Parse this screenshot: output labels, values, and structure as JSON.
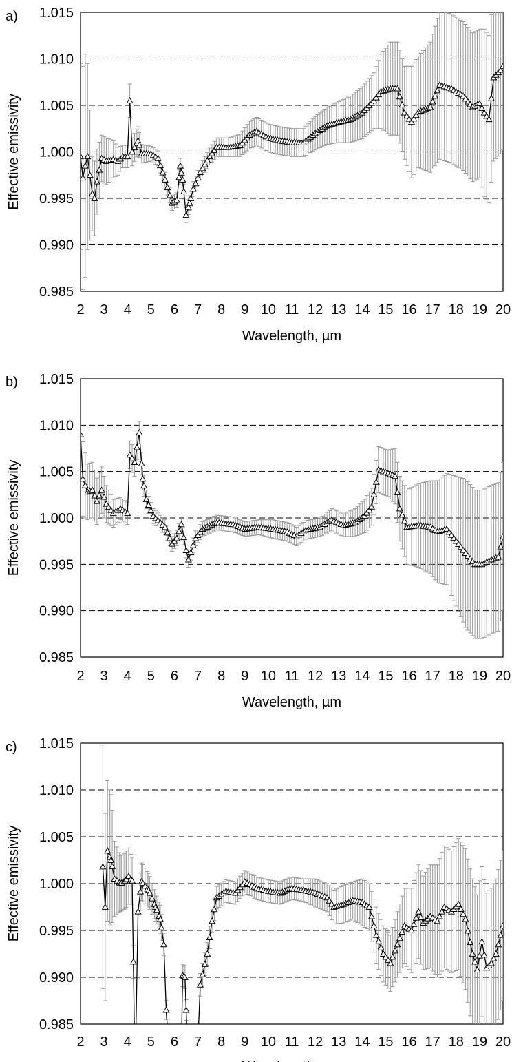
{
  "chart_data": [
    {
      "type": "line",
      "panel_label": "a)",
      "xlabel": "Wavelength, µm",
      "ylabel": "Effective emissivity",
      "xlim": [
        2,
        20
      ],
      "ylim": [
        0.985,
        1.015
      ],
      "xticks": [
        "2",
        "3",
        "4",
        "5",
        "6",
        "7",
        "8",
        "9",
        "10",
        "11",
        "12",
        "13",
        "14",
        "15",
        "16",
        "17",
        "18",
        "19",
        "20"
      ],
      "yticks": [
        "0.985",
        "0.990",
        "0.995",
        "1.000",
        "1.005",
        "1.010",
        "1.015"
      ],
      "grid": "horizontal-dashed",
      "marker": "open-triangle",
      "knots": [
        [
          2.0,
          0.9995,
          0.01
        ],
        [
          2.1,
          0.9972,
          0.012
        ],
        [
          2.2,
          0.9985,
          0.012
        ],
        [
          2.3,
          0.9995,
          0.01
        ],
        [
          2.5,
          0.9955,
          0.004
        ],
        [
          2.6,
          0.995,
          0.004
        ],
        [
          2.7,
          0.9968,
          0.0035
        ],
        [
          2.9,
          0.9993,
          0.0025
        ],
        [
          3.1,
          0.999,
          0.0025
        ],
        [
          3.4,
          0.9992,
          0.002
        ],
        [
          3.6,
          0.999,
          0.0015
        ],
        [
          3.8,
          0.9995,
          0.0012
        ],
        [
          4.0,
          0.9995,
          0.0012
        ],
        [
          4.1,
          1.0055,
          0.0018
        ],
        [
          4.2,
          1.0,
          0.0015
        ],
        [
          4.45,
          1.0012,
          0.0015
        ],
        [
          4.6,
          0.9998,
          0.001
        ],
        [
          5.0,
          0.9998,
          0.0008
        ],
        [
          5.3,
          0.9993,
          0.0008
        ],
        [
          5.6,
          0.997,
          0.0008
        ],
        [
          5.9,
          0.9945,
          0.0008
        ],
        [
          6.1,
          0.9948,
          0.0008
        ],
        [
          6.25,
          0.9985,
          0.0008
        ],
        [
          6.35,
          0.997,
          0.0008
        ],
        [
          6.5,
          0.9932,
          0.0008
        ],
        [
          6.65,
          0.9945,
          0.0008
        ],
        [
          6.8,
          0.996,
          0.0008
        ],
        [
          7.1,
          0.9978,
          0.0008
        ],
        [
          7.5,
          0.9995,
          0.0009
        ],
        [
          7.8,
          1.0005,
          0.001
        ],
        [
          8.3,
          1.0005,
          0.001
        ],
        [
          8.8,
          1.0007,
          0.0012
        ],
        [
          9.2,
          1.0018,
          0.0015
        ],
        [
          9.5,
          1.0022,
          0.0015
        ],
        [
          10.0,
          1.0015,
          0.0015
        ],
        [
          10.5,
          1.0012,
          0.0015
        ],
        [
          11.0,
          1.001,
          0.0015
        ],
        [
          11.5,
          1.001,
          0.0015
        ],
        [
          12.0,
          1.002,
          0.0018
        ],
        [
          12.5,
          1.0028,
          0.002
        ],
        [
          13.0,
          1.0032,
          0.0022
        ],
        [
          13.5,
          1.0035,
          0.0025
        ],
        [
          14.0,
          1.0042,
          0.0028
        ],
        [
          14.5,
          1.0055,
          0.003
        ],
        [
          14.8,
          1.0065,
          0.004
        ],
        [
          15.2,
          1.0068,
          0.005
        ],
        [
          15.5,
          1.0068,
          0.005
        ],
        [
          15.8,
          1.0042,
          0.005
        ],
        [
          16.1,
          1.0032,
          0.006
        ],
        [
          16.4,
          1.0043,
          0.006
        ],
        [
          16.9,
          1.0048,
          0.007
        ],
        [
          17.3,
          1.0072,
          0.008
        ],
        [
          17.8,
          1.0068,
          0.008
        ],
        [
          18.3,
          1.006,
          0.008
        ],
        [
          18.7,
          1.0048,
          0.008
        ],
        [
          19.0,
          1.0052,
          0.008
        ],
        [
          19.2,
          1.0042,
          0.009
        ],
        [
          19.4,
          1.0035,
          0.009
        ],
        [
          19.6,
          1.008,
          0.009
        ],
        [
          19.9,
          1.0088,
          0.009
        ],
        [
          20.0,
          1.0092,
          0.009
        ]
      ]
    },
    {
      "type": "line",
      "panel_label": "b)",
      "xlabel": "Wavelength, µm",
      "ylabel": "Effective emissivity",
      "xlim": [
        2,
        20
      ],
      "ylim": [
        0.985,
        1.015
      ],
      "xticks": [
        "2",
        "3",
        "4",
        "5",
        "6",
        "7",
        "8",
        "9",
        "10",
        "11",
        "12",
        "13",
        "14",
        "15",
        "16",
        "17",
        "18",
        "19",
        "20"
      ],
      "yticks": [
        "0.985",
        "0.990",
        "0.995",
        "1.000",
        "1.005",
        "1.010",
        "1.015"
      ],
      "grid": "horizontal-dashed",
      "marker": "open-triangle",
      "knots": [
        [
          2.0,
          1.009,
          0.006
        ],
        [
          2.1,
          1.0042,
          0.004
        ],
        [
          2.3,
          1.0028,
          0.003
        ],
        [
          2.5,
          1.003,
          0.003
        ],
        [
          2.7,
          1.0018,
          0.0025
        ],
        [
          2.9,
          1.003,
          0.0025
        ],
        [
          3.1,
          1.0015,
          0.002
        ],
        [
          3.4,
          1.0005,
          0.0015
        ],
        [
          3.7,
          1.001,
          0.0012
        ],
        [
          4.0,
          1.0005,
          0.0012
        ],
        [
          4.1,
          1.0068,
          0.0015
        ],
        [
          4.3,
          1.006,
          0.0015
        ],
        [
          4.5,
          1.0092,
          0.0012
        ],
        [
          4.65,
          1.0042,
          0.0012
        ],
        [
          4.8,
          1.002,
          0.001
        ],
        [
          5.1,
          1.0002,
          0.0008
        ],
        [
          5.6,
          0.999,
          0.0008
        ],
        [
          5.9,
          0.9972,
          0.0008
        ],
        [
          6.1,
          0.9978,
          0.0008
        ],
        [
          6.3,
          0.9993,
          0.0008
        ],
        [
          6.5,
          0.9965,
          0.0008
        ],
        [
          6.6,
          0.9955,
          0.0008
        ],
        [
          6.9,
          0.9978,
          0.0008
        ],
        [
          7.2,
          0.9988,
          0.0008
        ],
        [
          7.8,
          0.9995,
          0.0008
        ],
        [
          8.5,
          0.9993,
          0.0008
        ],
        [
          9.0,
          0.9988,
          0.0008
        ],
        [
          9.6,
          0.999,
          0.0008
        ],
        [
          10.2,
          0.9988,
          0.001
        ],
        [
          10.8,
          0.9985,
          0.001
        ],
        [
          11.2,
          0.998,
          0.001
        ],
        [
          11.6,
          0.9987,
          0.001
        ],
        [
          12.2,
          0.999,
          0.001
        ],
        [
          12.7,
          0.9998,
          0.0012
        ],
        [
          13.2,
          0.9992,
          0.0012
        ],
        [
          13.7,
          0.9995,
          0.0015
        ],
        [
          14.1,
          1.0002,
          0.0018
        ],
        [
          14.4,
          1.0012,
          0.002
        ],
        [
          14.7,
          1.0052,
          0.0025
        ],
        [
          15.1,
          1.0048,
          0.0025
        ],
        [
          15.4,
          1.0045,
          0.003
        ],
        [
          15.6,
          1.001,
          0.0035
        ],
        [
          15.9,
          0.999,
          0.004
        ],
        [
          16.4,
          0.9992,
          0.0045
        ],
        [
          16.9,
          0.999,
          0.005
        ],
        [
          17.2,
          0.9985,
          0.0055
        ],
        [
          17.6,
          0.9988,
          0.006
        ],
        [
          18.0,
          0.9975,
          0.007
        ],
        [
          18.4,
          0.9962,
          0.008
        ],
        [
          18.8,
          0.995,
          0.008
        ],
        [
          19.1,
          0.995,
          0.008
        ],
        [
          19.5,
          0.9955,
          0.008
        ],
        [
          19.8,
          0.9958,
          0.008
        ],
        [
          20.0,
          0.998,
          0.008
        ]
      ]
    },
    {
      "type": "line",
      "panel_label": "c)",
      "xlabel": "Wavelength, µm",
      "ylabel": "Effective emissivity",
      "xlim": [
        2,
        20
      ],
      "ylim": [
        0.985,
        1.015
      ],
      "xticks": [
        "2",
        "3",
        "4",
        "5",
        "6",
        "7",
        "8",
        "9",
        "10",
        "11",
        "12",
        "13",
        "14",
        "15",
        "16",
        "17",
        "18",
        "19",
        "20"
      ],
      "yticks": [
        "0.985",
        "0.990",
        "0.995",
        "1.000",
        "1.005",
        "1.010",
        "1.015"
      ],
      "grid": "horizontal-dashed",
      "marker": "open-triangle",
      "segments": [
        [
          [
            2.95,
            1.0018,
            0.013
          ],
          [
            3.05,
            0.9975,
            0.01
          ],
          [
            3.15,
            1.0035,
            0.0075
          ],
          [
            3.3,
            1.0025,
            0.007
          ],
          [
            3.45,
            1.0005,
            0.004
          ],
          [
            3.7,
            1.0,
            0.003
          ],
          [
            3.9,
            1.0003,
            0.003
          ],
          [
            4.05,
            1.0008,
            0.003
          ],
          [
            4.2,
            1.0003,
            0.0025
          ],
          [
            4.3,
            0.983,
            0.001
          ]
        ],
        [
          [
            4.35,
            0.983,
            0.001
          ],
          [
            4.45,
            0.997,
            0.002
          ],
          [
            4.6,
            1.0002,
            0.002
          ],
          [
            4.9,
            0.9993,
            0.0018
          ],
          [
            5.2,
            0.9975,
            0.0015
          ],
          [
            5.4,
            0.9962,
            0.0015
          ],
          [
            5.55,
            0.9935,
            0.0012
          ],
          [
            5.65,
            0.9865,
            0.001
          ],
          [
            5.75,
            0.983,
            0.001
          ]
        ],
        [
          [
            6.3,
            0.983,
            0.001
          ],
          [
            6.35,
            0.9902,
            0.0012
          ],
          [
            6.45,
            0.99,
            0.0012
          ],
          [
            6.55,
            0.983,
            0.001
          ]
        ],
        [
          [
            7.0,
            0.983,
            0.001
          ],
          [
            7.1,
            0.9892,
            0.0012
          ],
          [
            7.4,
            0.9925,
            0.0012
          ],
          [
            7.6,
            0.996,
            0.0012
          ],
          [
            7.8,
            0.9985,
            0.0012
          ],
          [
            8.2,
            0.9992,
            0.0012
          ],
          [
            8.6,
            0.999,
            0.0012
          ],
          [
            9.0,
            1.0002,
            0.0012
          ],
          [
            9.5,
            0.9995,
            0.0012
          ],
          [
            10.0,
            0.9992,
            0.0012
          ],
          [
            10.5,
            0.999,
            0.0012
          ],
          [
            11.0,
            0.9995,
            0.0012
          ],
          [
            11.5,
            0.9993,
            0.0012
          ],
          [
            12.0,
            0.999,
            0.0015
          ],
          [
            12.5,
            0.9985,
            0.0015
          ],
          [
            12.8,
            0.9975,
            0.0018
          ],
          [
            13.2,
            0.9978,
            0.002
          ],
          [
            13.6,
            0.9982,
            0.002
          ],
          [
            14.0,
            0.998,
            0.0025
          ],
          [
            14.3,
            0.9975,
            0.0025
          ],
          [
            14.6,
            0.9945,
            0.003
          ],
          [
            14.9,
            0.9925,
            0.003
          ],
          [
            15.2,
            0.9915,
            0.003
          ],
          [
            15.5,
            0.9935,
            0.0035
          ],
          [
            15.8,
            0.9955,
            0.004
          ],
          [
            16.1,
            0.995,
            0.0045
          ],
          [
            16.4,
            0.997,
            0.005
          ],
          [
            16.6,
            0.9958,
            0.005
          ],
          [
            16.9,
            0.9965,
            0.0055
          ],
          [
            17.2,
            0.996,
            0.006
          ],
          [
            17.5,
            0.9975,
            0.0065
          ],
          [
            17.8,
            0.997,
            0.0065
          ],
          [
            18.1,
            0.9978,
            0.007
          ],
          [
            18.4,
            0.9962,
            0.0075
          ],
          [
            18.7,
            0.9925,
            0.008
          ],
          [
            18.9,
            0.9908,
            0.008
          ],
          [
            19.1,
            0.9938,
            0.008
          ],
          [
            19.3,
            0.991,
            0.008
          ],
          [
            19.5,
            0.9915,
            0.008
          ],
          [
            19.7,
            0.9925,
            0.008
          ],
          [
            20.0,
            0.9955,
            0.008
          ]
        ]
      ]
    }
  ]
}
